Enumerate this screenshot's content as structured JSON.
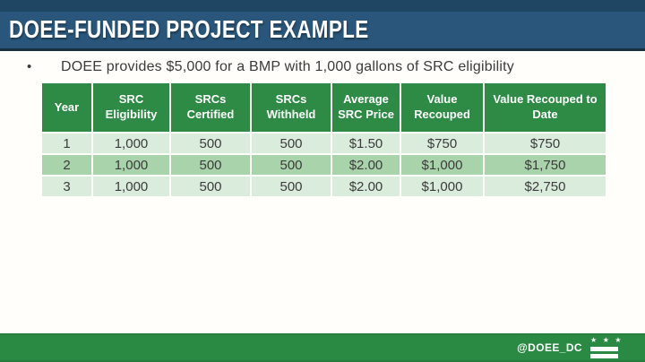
{
  "header": {
    "title": "DOEE-FUNDED PROJECT EXAMPLE"
  },
  "content": {
    "bullet_marker": "•",
    "bullet_text": "DOEE provides $5,000 for a BMP with 1,000 gallons of SRC eligibility"
  },
  "table": {
    "columns": [
      "Year",
      "SRC Eligibility",
      "SRCs Certified",
      "SRCs Withheld",
      "Average SRC Price",
      "Value Recouped",
      "Value Recouped to Date"
    ],
    "rows": [
      [
        "1",
        "1,000",
        "500",
        "500",
        "$1.50",
        "$750",
        "$750"
      ],
      [
        "2",
        "1,000",
        "500",
        "500",
        "$2.00",
        "$1,000",
        "$1,750"
      ],
      [
        "3",
        "1,000",
        "500",
        "500",
        "$2.00",
        "$1,000",
        "$2,750"
      ]
    ]
  },
  "footer": {
    "handle": "@DOEE_DC",
    "flag_stars": "★ ★ ★"
  },
  "colors": {
    "title_bar_blue": "#29567a",
    "title_bar_blue_dark": "#1f4763",
    "title_bar_border": "#182f41",
    "table_header_green": "#2e8b46",
    "row_light_green": "#daecdc",
    "row_medium_green": "#a9d3ab",
    "footer_green": "#2a8a43",
    "body_text": "#3b3b3b"
  }
}
